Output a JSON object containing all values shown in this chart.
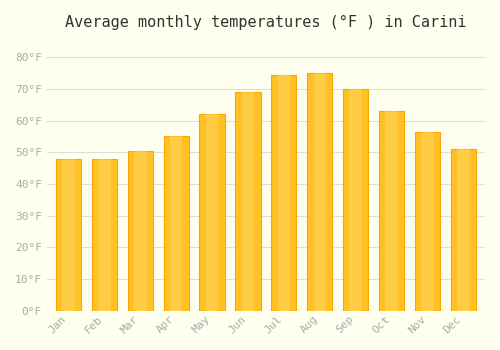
{
  "months": [
    "Jan",
    "Feb",
    "Mar",
    "Apr",
    "May",
    "Jun",
    "Jul",
    "Aug",
    "Sep",
    "Oct",
    "Nov",
    "Dec"
  ],
  "values": [
    48,
    48,
    50.5,
    55,
    62,
    69,
    74.5,
    75,
    70,
    63,
    56.5,
    51
  ],
  "bar_color_main": "#FFC125",
  "bar_color_edge": "#FFA500",
  "background_color": "#FFFFF0",
  "title": "Average monthly temperatures (°F ) in Carini",
  "title_fontsize": 11,
  "ylabel": "",
  "xlabel": "",
  "ylim": [
    0,
    86
  ],
  "yticks": [
    0,
    10,
    20,
    30,
    40,
    50,
    60,
    70,
    80
  ],
  "ytick_labels": [
    "0°F",
    "10°F",
    "20°F",
    "30°F",
    "40°F",
    "50°F",
    "60°F",
    "70°F",
    "80°F"
  ],
  "grid_color": "#dddddd",
  "tick_color": "#aaaaaa",
  "label_color": "#aaaaaa",
  "font_family": "monospace"
}
